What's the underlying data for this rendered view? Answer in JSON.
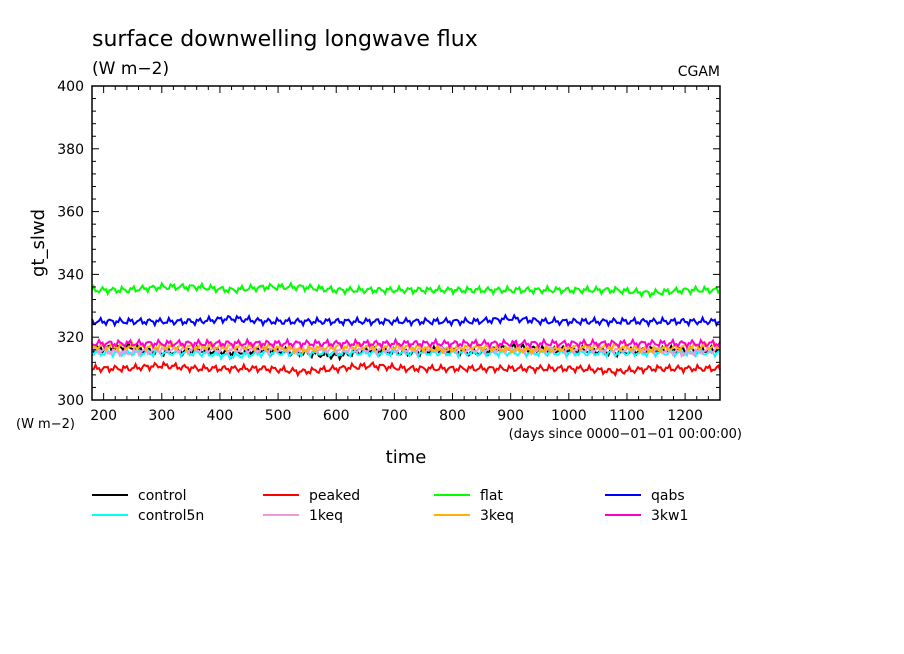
{
  "chart_data": {
    "type": "line",
    "title": "surface downwelling longwave flux",
    "subtitle": "(W m−2)",
    "source": "CGAM",
    "xlabel": "time",
    "xunits": "(days since 0000−01−01 00:00:00)",
    "ylabel": "gt_slwd",
    "yunits": "(W m−2)",
    "xlim": [
      180,
      1260
    ],
    "ylim": [
      300,
      400
    ],
    "xticks": [
      200,
      300,
      400,
      500,
      600,
      700,
      800,
      900,
      1000,
      1100,
      1200
    ],
    "yticks": [
      300,
      320,
      340,
      360,
      380,
      400
    ],
    "legend_position": "bottom",
    "grid": false,
    "x": [
      180,
      240,
      300,
      360,
      420,
      480,
      540,
      600,
      660,
      720,
      780,
      840,
      900,
      960,
      1020,
      1080,
      1140,
      1200,
      1260
    ],
    "series": [
      {
        "name": "control",
        "color": "#000000",
        "values": [
          316,
          317,
          315,
          316,
          315,
          316,
          315,
          314,
          316,
          315,
          316,
          315,
          317,
          316,
          316,
          315,
          316,
          316,
          316
        ]
      },
      {
        "name": "peaked",
        "color": "#ff0000",
        "values": [
          310,
          310,
          311,
          310,
          310,
          310,
          309,
          310,
          311,
          310,
          310,
          310,
          310,
          310,
          310,
          309,
          310,
          310,
          310
        ]
      },
      {
        "name": "flat",
        "color": "#00ff00",
        "values": [
          335,
          335,
          336,
          336,
          335,
          336,
          336,
          335,
          335,
          335,
          335,
          335,
          335,
          335,
          335,
          335,
          334,
          335,
          335
        ]
      },
      {
        "name": "qabs",
        "color": "#0000ff",
        "values": [
          325,
          325,
          325,
          325,
          326,
          325,
          325,
          325,
          325,
          325,
          325,
          325,
          326,
          325,
          325,
          325,
          325,
          325,
          325
        ]
      },
      {
        "name": "control5n",
        "color": "#00ffff",
        "values": [
          315,
          315,
          315,
          315,
          314,
          315,
          315,
          315,
          315,
          315,
          315,
          315,
          315,
          315,
          315,
          315,
          315,
          315,
          315
        ]
      },
      {
        "name": "1keq",
        "color": "#ee99dd",
        "values": [
          316,
          315,
          316,
          316,
          316,
          316,
          316,
          316,
          316,
          316,
          316,
          316,
          316,
          316,
          316,
          316,
          316,
          315,
          316
        ]
      },
      {
        "name": "3keq",
        "color": "#ffb000",
        "values": [
          317,
          317,
          317,
          317,
          317,
          317,
          316,
          317,
          317,
          317,
          316,
          317,
          316,
          316,
          317,
          317,
          316,
          317,
          317
        ]
      },
      {
        "name": "3kw1",
        "color": "#ff00cc",
        "values": [
          318,
          318,
          318,
          318,
          318,
          318,
          318,
          318,
          318,
          318,
          318,
          318,
          318,
          318,
          318,
          318,
          318,
          318,
          318
        ]
      }
    ]
  }
}
